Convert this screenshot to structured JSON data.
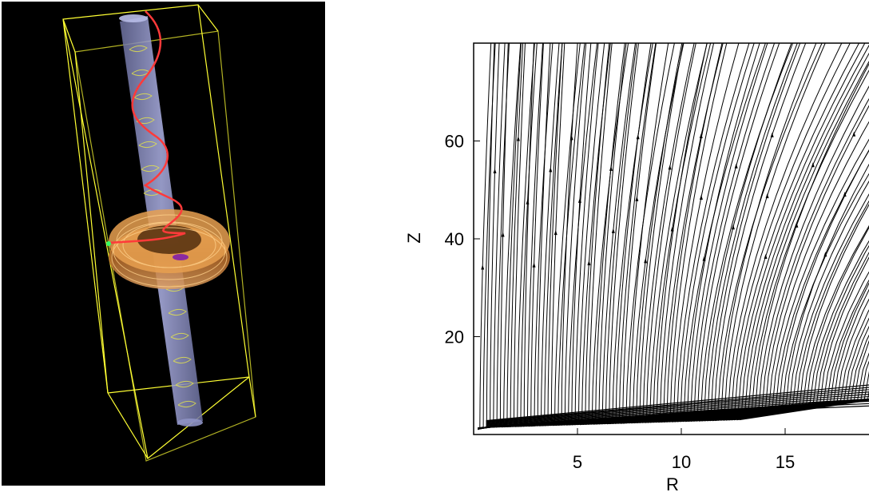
{
  "chart_data": {
    "type": "streamline",
    "xlabel": "R",
    "ylabel": "Z",
    "x_ticks": [
      5,
      10,
      15
    ],
    "y_ticks": [
      20,
      40,
      60
    ],
    "xlim": [
      0,
      20
    ],
    "ylim": [
      0,
      80
    ],
    "grid": false,
    "line_color": "#000000"
  },
  "visualization": {
    "background_color": "#000000",
    "box_color": "#ffff33",
    "jet_color": "#9aa0d8",
    "disk_color": "#d68a3a",
    "helix_color": "#ff3333",
    "marker_color": "#33ff66"
  }
}
